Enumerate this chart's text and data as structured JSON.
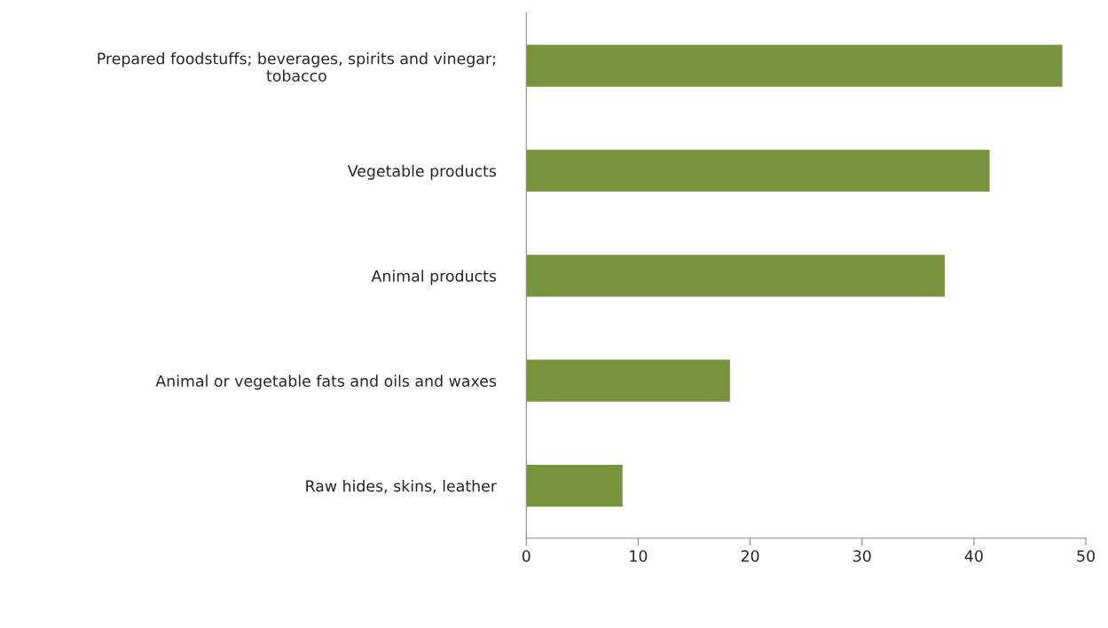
{
  "chart_data": {
    "type": "bar",
    "orientation": "horizontal",
    "categories": [
      "Prepared foodstuffs; beverages, spirits and vinegar; tobacco",
      "Vegetable products",
      "Animal products",
      "Animal or vegetable fats and oils and waxes",
      "Raw hides, skins, leather"
    ],
    "values": [
      47.9,
      41.4,
      37.4,
      18.2,
      8.6
    ],
    "color": "#77933c",
    "xlim": [
      0,
      50
    ],
    "xticks": [
      0,
      10,
      20,
      30,
      40,
      50
    ],
    "grid": false
  }
}
